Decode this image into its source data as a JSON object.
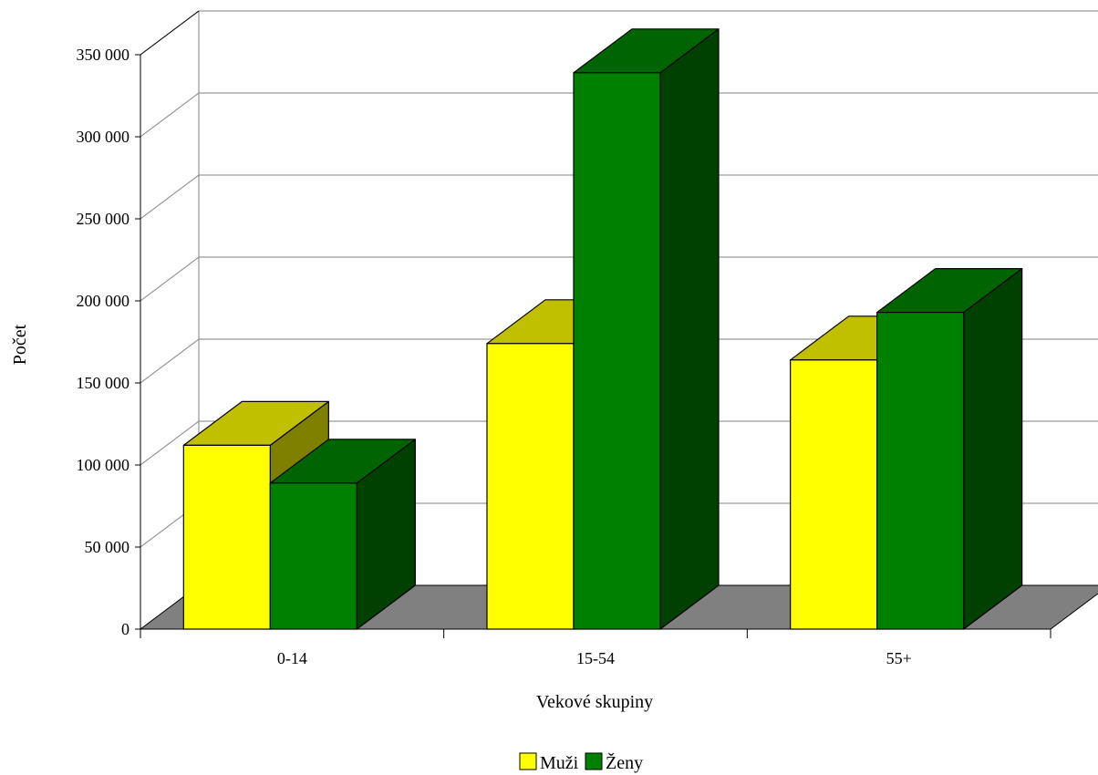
{
  "chart_data": {
    "type": "bar",
    "style": "3d-clustered",
    "categories": [
      "0-14",
      "15-54",
      "55+"
    ],
    "series": [
      {
        "name": "Muži",
        "values": [
          112000,
          174000,
          164000
        ],
        "color": "#ffff00",
        "top_color": "#c0c000",
        "side_color": "#808000"
      },
      {
        "name": "Ženy",
        "values": [
          89000,
          339000,
          193000
        ],
        "color": "#008000",
        "top_color": "#006400",
        "side_color": "#004000"
      }
    ],
    "title": "",
    "xlabel": "Vekové skupiny",
    "ylabel": "Počet",
    "ylim": [
      0,
      350000
    ],
    "yticks": [
      0,
      50000,
      100000,
      150000,
      200000,
      250000,
      300000,
      350000
    ],
    "ytick_labels": [
      "0",
      "50 000",
      "100 000",
      "150 000",
      "200 000",
      "250 000",
      "300 000",
      "350 000"
    ],
    "grid": true,
    "legend_position": "bottom",
    "floor_color": "#808080",
    "gridline_color": "#808080"
  }
}
